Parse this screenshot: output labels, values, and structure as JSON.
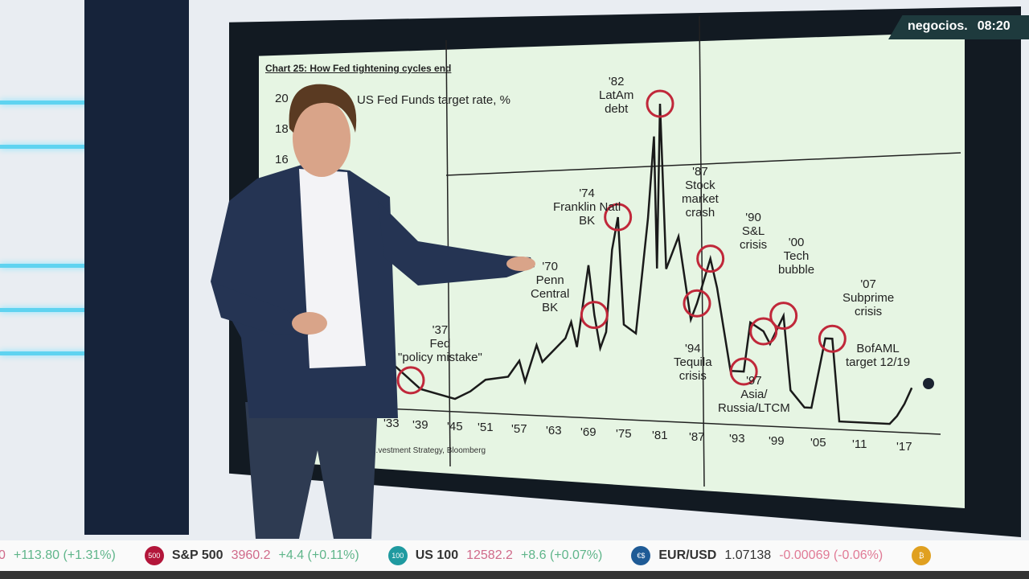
{
  "broadcast": {
    "channel": "negocios.",
    "time": "08:20"
  },
  "chart": {
    "title": "Chart 25: How Fed tightening cycles end",
    "series_label": "US Fed Funds target rate, %",
    "y_ticks": [
      "20",
      "18",
      "16"
    ],
    "x_ticks": [
      "'33",
      "'39",
      "'45",
      "'51",
      "'57",
      "'63",
      "'69",
      "'75",
      "'81",
      "'87",
      "'93",
      "'99",
      "'05",
      "'11",
      "'17"
    ],
    "source": "...vestment Strategy, Bloomberg",
    "annotations": [
      {
        "text": "'37\nFed\n\"policy mistake\""
      },
      {
        "text": "'70\nPenn\nCentral\nBK"
      },
      {
        "text": "'74\nFranklin Natl\nBK"
      },
      {
        "text": "'82\nLatAm\ndebt"
      },
      {
        "text": "'87\nStock\nmarket\ncrash"
      },
      {
        "text": "'90\nS&L\ncrisis"
      },
      {
        "text": "'94\nTequila\ncrisis"
      },
      {
        "text": "'97\nAsia/\nRussia/LTCM"
      },
      {
        "text": "'00\nTech\nbubble"
      },
      {
        "text": "'07\nSubprime\ncrisis"
      },
      {
        "text": "BofAML\ntarget 12/19"
      }
    ],
    "line_color": "#1a1a1a",
    "circle_color": "#c0283a"
  },
  "chart_data": {
    "type": "line",
    "title": "Chart 25: How Fed tightening cycles end",
    "ylabel": "US Fed Funds target rate, %",
    "x": [
      1933,
      1937,
      1939,
      1945,
      1948,
      1951,
      1955,
      1957,
      1958,
      1960,
      1961,
      1965,
      1966,
      1967,
      1969,
      1970,
      1971,
      1972,
      1973,
      1974,
      1975,
      1977,
      1979,
      1980,
      1980.5,
      1981,
      1982,
      1984,
      1986,
      1987,
      1989,
      1990,
      1992,
      1994,
      1995,
      1997,
      1998,
      2000,
      2001,
      2003,
      2004,
      2006,
      2007,
      2008,
      2015,
      2016,
      2017,
      2018
    ],
    "y": [
      2.5,
      1.5,
      1,
      0.5,
      1,
      1.75,
      2,
      3,
      1.75,
      4,
      3,
      4.5,
      5.5,
      4,
      9,
      6,
      4,
      5,
      10,
      12,
      5.5,
      5,
      12,
      17,
      9,
      19,
      9,
      11,
      6,
      7,
      9.75,
      8,
      3,
      3,
      6,
      5.5,
      4.75,
      6.5,
      2,
      1,
      1,
      5.25,
      5.25,
      0.25,
      0.25,
      0.75,
      1.5,
      2.5
    ],
    "target": {
      "x": 2019,
      "y": 3.25,
      "label": "BofAML target 12/19"
    },
    "circled_years": [
      1937,
      1970,
      1974,
      1981,
      1987,
      1989,
      1994,
      1997,
      2000,
      2007
    ]
  },
  "ticker": [
    {
      "name": "",
      "price": "0",
      "change": "+113.80 (+1.31%)",
      "dir": "up"
    },
    {
      "badge": "500",
      "badge_color": "#b3163a",
      "name": "S&P 500",
      "price": "3960.2",
      "change": "+4.4 (+0.11%)",
      "dir": "up"
    },
    {
      "badge": "100",
      "badge_color": "#1f9aa0",
      "name": "US 100",
      "price": "12582.2",
      "change": "+8.6 (+0.07%)",
      "dir": "up"
    },
    {
      "badge": "€$",
      "badge_color": "#1f5b96",
      "name": "EUR/USD",
      "price": "1.07138",
      "change": "-0.00069 (-0.06%)",
      "dir": "down"
    },
    {
      "badge": "₿",
      "badge_color": "#e0a020",
      "name": "",
      "price": "",
      "change": "",
      "dir": "up"
    }
  ]
}
